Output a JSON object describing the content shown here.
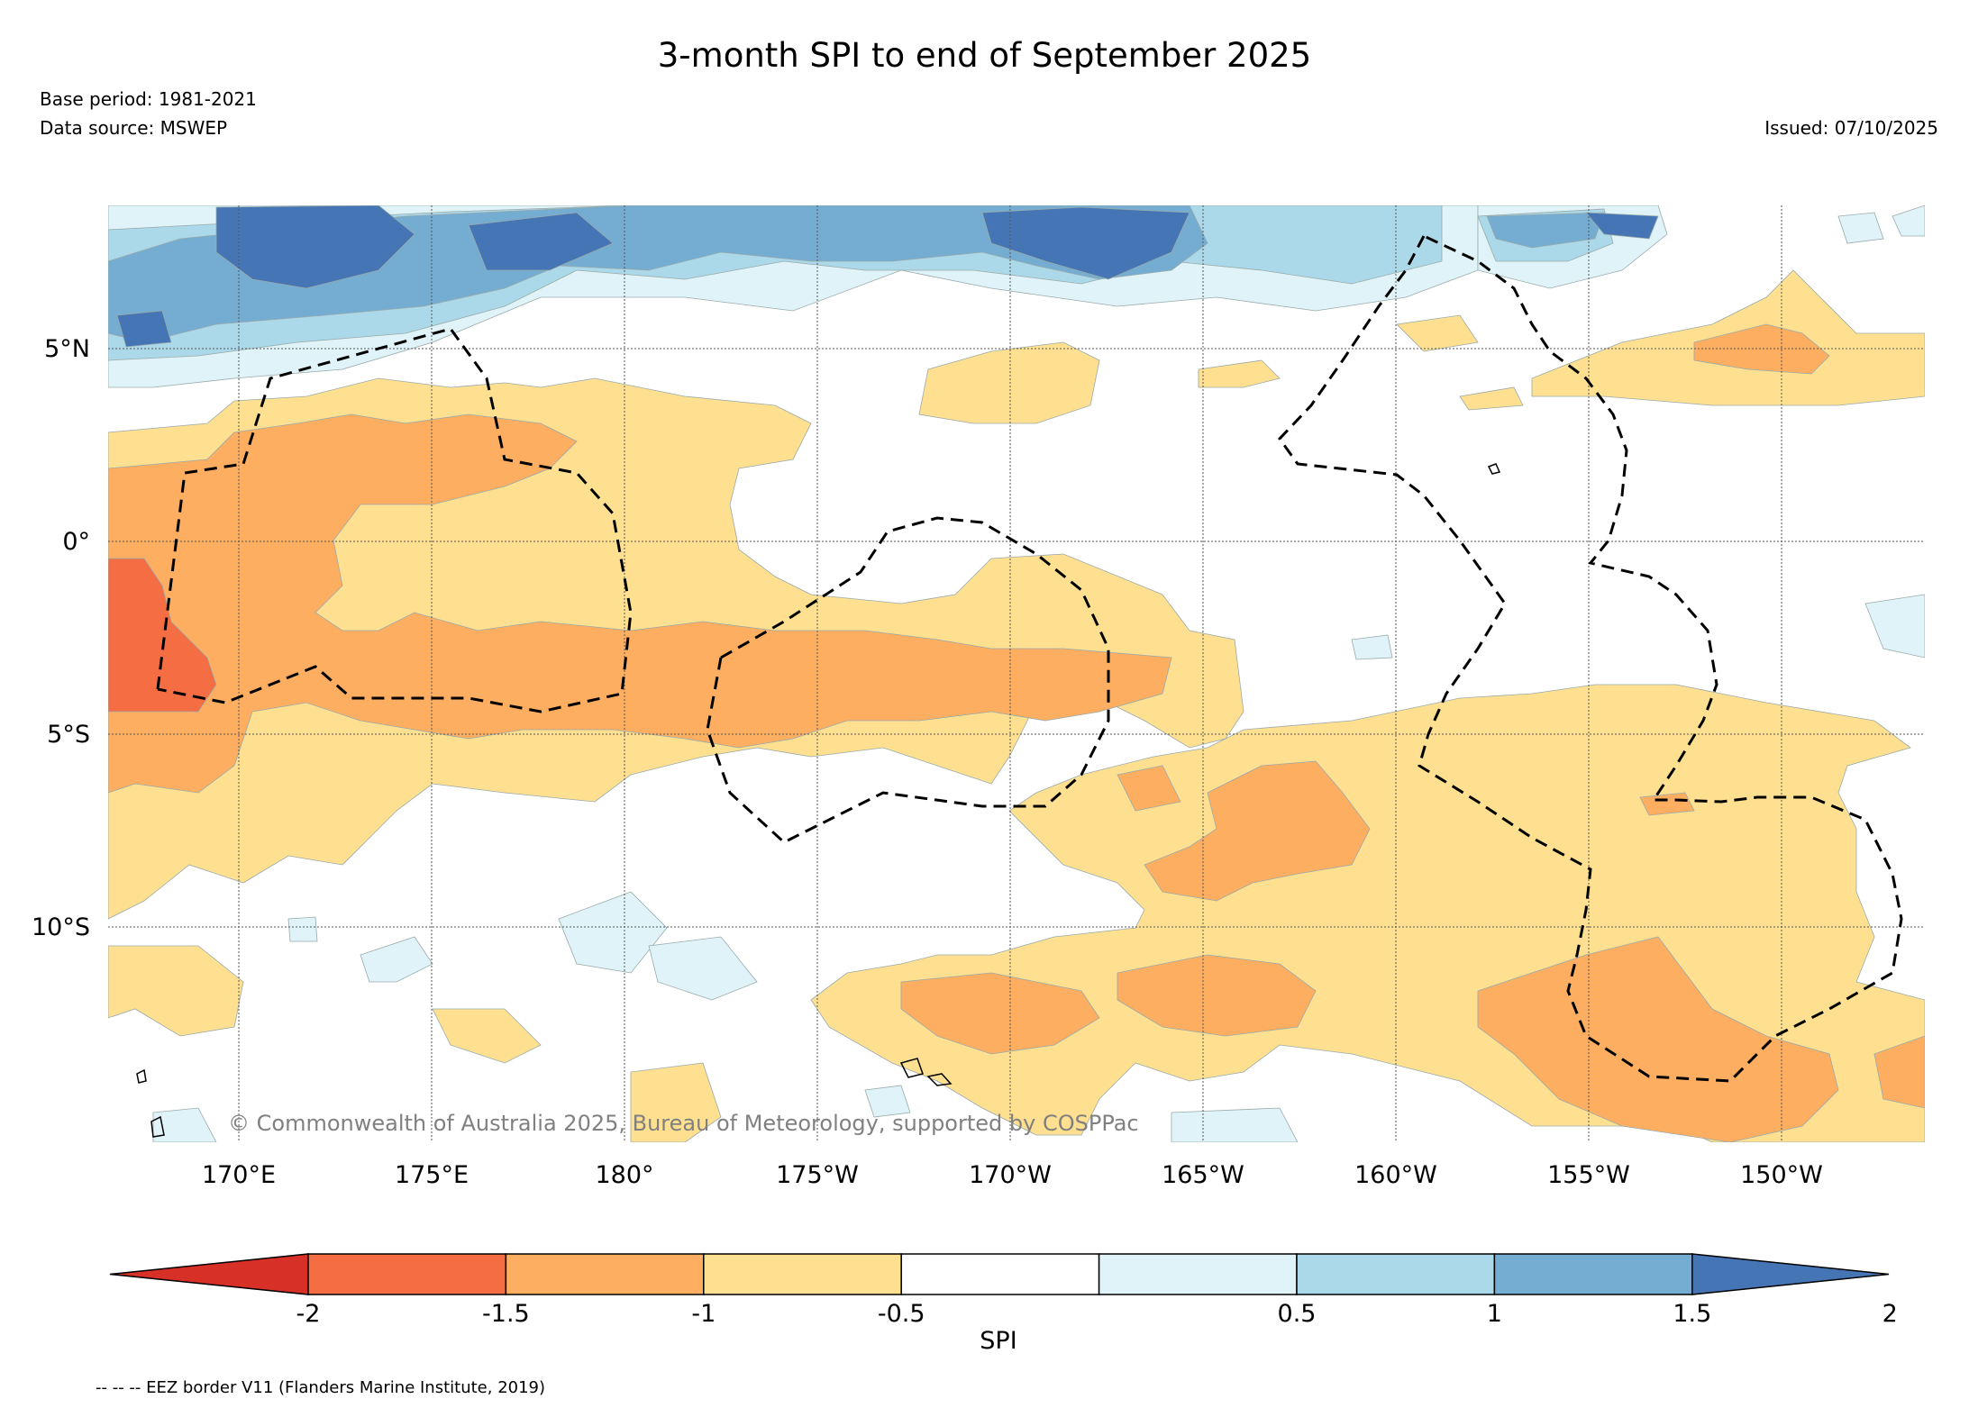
{
  "header": {
    "title": "3-month SPI to end of September 2025",
    "base_period": "Base period: 1981-2021",
    "data_source": "Data source: MSWEP",
    "issued": "Issued: 07/10/2025"
  },
  "map": {
    "lat_labels": [
      "5°N",
      "0°",
      "5°S",
      "10°S"
    ],
    "lon_labels": [
      "170°E",
      "175°E",
      "180°",
      "175°W",
      "170°W",
      "165°W",
      "160°W",
      "155°W",
      "150°W"
    ],
    "copyright": "© Commonwealth of Australia 2025, Bureau of Meteorology, supported by COSPPac"
  },
  "legend": {
    "label": "SPI",
    "ticks": [
      "-2",
      "-1.5",
      "-1",
      "-0.5",
      "0.5",
      "1",
      "1.5",
      "2"
    ],
    "colors": {
      "below_-2": "#d73027",
      "-2_-1.5": "#f46d43",
      "-1.5_-1": "#fdae61",
      "-1_-0.5": "#fee090",
      "-0.5_0.5": "#ffffff",
      "0.5_1": "#e0f3f8",
      "1_1.5": "#abd9e9",
      "1.5_2": "#74add1",
      "above_2": "#4575b4"
    },
    "footnote": "-- -- -- EEZ border V11 (Flanders Marine Institute, 2019)"
  }
}
